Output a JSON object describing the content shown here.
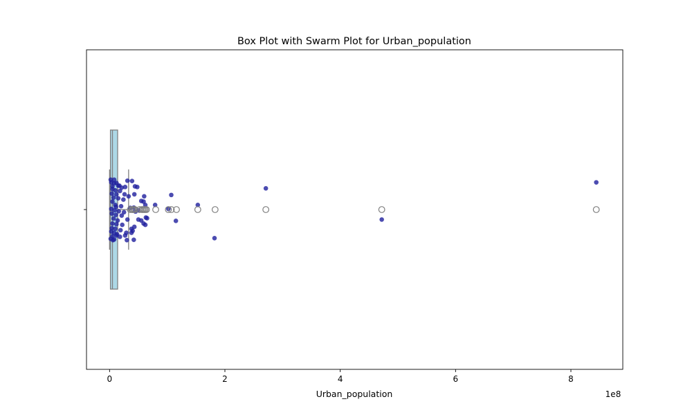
{
  "chart_data": {
    "type": "box+swarm",
    "title": "Box Plot with Swarm Plot for Urban_population",
    "xlabel": "Urban_population",
    "ylabel": "",
    "x_offset_label": "1e8",
    "x_ticks": [
      0,
      2,
      4,
      6,
      8
    ],
    "xlim": [
      -0.4,
      8.9
    ],
    "units_note": "x values in units of 1e8",
    "grid": false,
    "colors": {
      "box_fill": "#add8e6",
      "box_edge": "#7f7f7f",
      "swarm_point": "#1f1f9e",
      "outlier_edge": "#7f7f7f"
    },
    "box": {
      "q1": 0.015,
      "median": 0.05,
      "q3": 0.14,
      "whisker_low": 0.0,
      "whisker_high": 0.33,
      "outliers": [
        0.36,
        0.39,
        0.4,
        0.42,
        0.44,
        0.52,
        0.56,
        0.58,
        0.6,
        0.62,
        0.64,
        0.8,
        1.02,
        1.07,
        1.16,
        1.53,
        1.83,
        2.71,
        4.72,
        8.44
      ]
    },
    "points": [
      [
        0.03,
        -0.82
      ],
      [
        0.08,
        -0.79
      ],
      [
        0.12,
        -0.8
      ],
      [
        0.05,
        -0.7
      ],
      [
        0.15,
        -0.72
      ],
      [
        0.21,
        -0.66
      ],
      [
        0.27,
        -0.68
      ],
      [
        0.05,
        -0.62
      ],
      [
        0.1,
        -0.58
      ],
      [
        0.18,
        -0.56
      ],
      [
        0.39,
        -0.86
      ],
      [
        0.31,
        -0.87
      ],
      [
        0.44,
        -0.7
      ],
      [
        0.48,
        -0.68
      ],
      [
        0.6,
        -0.4
      ],
      [
        0.55,
        -0.26
      ],
      [
        0.04,
        -0.48
      ],
      [
        0.12,
        -0.46
      ],
      [
        0.07,
        -0.36
      ],
      [
        0.15,
        -0.34
      ],
      [
        0.24,
        -0.3
      ],
      [
        0.05,
        -0.24
      ],
      [
        0.1,
        -0.14
      ],
      [
        0.2,
        -0.1
      ],
      [
        0.36,
        -0.05
      ],
      [
        0.42,
        -0.06
      ],
      [
        0.03,
        -0.02
      ],
      [
        0.09,
        0.02
      ],
      [
        0.16,
        0.05
      ],
      [
        0.25,
        0.08
      ],
      [
        0.45,
        0.06
      ],
      [
        0.5,
        0.02
      ],
      [
        0.04,
        0.12
      ],
      [
        0.11,
        0.16
      ],
      [
        0.21,
        0.18
      ],
      [
        0.31,
        0.3
      ],
      [
        0.07,
        0.27
      ],
      [
        0.14,
        0.33
      ],
      [
        0.05,
        0.42
      ],
      [
        0.12,
        0.44
      ],
      [
        0.22,
        0.46
      ],
      [
        0.04,
        0.56
      ],
      [
        0.1,
        0.58
      ],
      [
        0.19,
        0.62
      ],
      [
        0.29,
        0.7
      ],
      [
        0.38,
        0.7
      ],
      [
        0.03,
        0.66
      ],
      [
        0.08,
        0.7
      ],
      [
        0.13,
        0.74
      ],
      [
        0.27,
        0.78
      ],
      [
        0.05,
        0.8
      ],
      [
        0.12,
        0.78
      ],
      [
        0.02,
        0.88
      ],
      [
        0.08,
        0.9
      ],
      [
        0.18,
        0.82
      ],
      [
        0.3,
        0.92
      ],
      [
        0.42,
        0.91
      ],
      [
        0.4,
        0.64
      ],
      [
        0.43,
        0.52
      ],
      [
        0.38,
        0.58
      ],
      [
        0.59,
        0.42
      ],
      [
        0.55,
        0.33
      ],
      [
        0.62,
        0.46
      ],
      [
        0.63,
        0.24
      ],
      [
        0.62,
        -0.14
      ],
      [
        0.59,
        -0.24
      ],
      [
        0.08,
        -0.9
      ],
      [
        0.02,
        -0.9
      ],
      [
        0.06,
        0.92
      ],
      [
        0.11,
        -0.08
      ],
      [
        1.02,
        -0.02
      ],
      [
        1.07,
        -0.44
      ],
      [
        1.15,
        0.34
      ],
      [
        1.53,
        -0.14
      ],
      [
        1.82,
        0.86
      ],
      [
        2.71,
        -0.64
      ],
      [
        4.72,
        0.3
      ],
      [
        8.44,
        -0.82
      ],
      [
        0.79,
        -0.14
      ],
      [
        0.5,
        0.3
      ],
      [
        0.65,
        0.26
      ],
      [
        0.43,
        -0.46
      ],
      [
        0.26,
        -0.46
      ],
      [
        0.17,
        -0.72
      ],
      [
        0.33,
        -0.4
      ]
    ]
  }
}
